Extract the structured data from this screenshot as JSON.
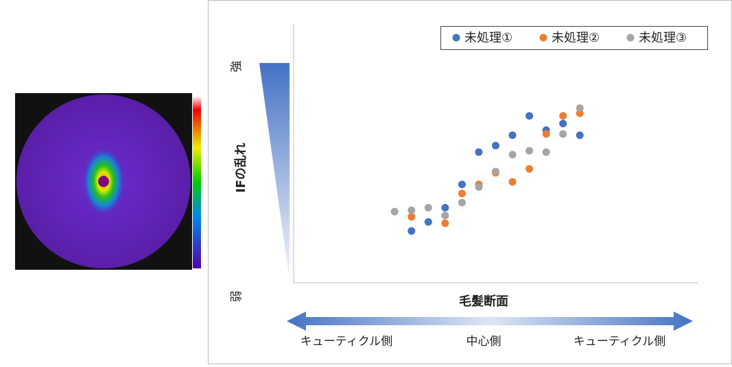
{
  "chart_data": {
    "type": "scatter",
    "y_label": "IFの乱れ",
    "x_label": "毛髪断面",
    "y_high_label": "強",
    "y_low_label": "弱",
    "x_annotations": [
      "キューティクル側",
      "中心側",
      "キューティクル側"
    ],
    "xlim": [
      0,
      24
    ],
    "ylim": [
      0,
      100
    ],
    "legend": "top-right",
    "series": [
      {
        "name": "未処理①",
        "color": "#4472c4",
        "x": [
          7,
          8,
          9,
          10,
          11,
          12,
          13,
          14,
          15,
          16,
          17
        ],
        "values": [
          20,
          23.5,
          29,
          38,
          50.5,
          53,
          57,
          64.5,
          59,
          61.5,
          57
        ]
      },
      {
        "name": "未処理②",
        "color": "#ed7d31",
        "x": [
          7,
          9,
          10,
          11,
          12,
          13,
          14,
          15,
          16,
          17
        ],
        "values": [
          25.5,
          23,
          34.5,
          38,
          42.5,
          39,
          44,
          57.5,
          64.5,
          65.5
        ]
      },
      {
        "name": "未処理③",
        "color": "#a5a5a5",
        "x": [
          6,
          7,
          8,
          9,
          10,
          11,
          12,
          13,
          14,
          15,
          16,
          17
        ],
        "values": [
          27.5,
          28,
          29,
          26,
          31,
          37,
          43,
          49.5,
          51,
          50.5,
          57.5,
          67.5
        ]
      }
    ]
  }
}
